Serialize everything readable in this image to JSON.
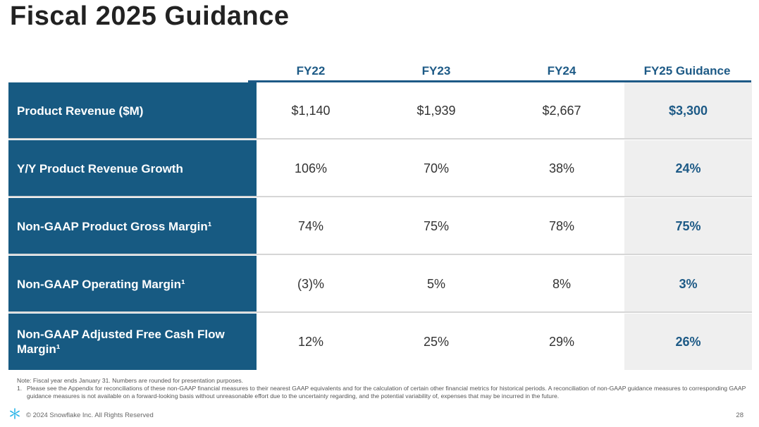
{
  "title": "Fiscal 2025 Guidance",
  "columns": [
    "FY22",
    "FY23",
    "FY24",
    "FY25 Guidance"
  ],
  "rows": [
    {
      "label": "Product Revenue ($M)",
      "values": [
        "$1,140",
        "$1,939",
        "$2,667",
        "$3,300"
      ]
    },
    {
      "label": "Y/Y Product Revenue Growth",
      "values": [
        "106%",
        "70%",
        "38%",
        "24%"
      ]
    },
    {
      "label": "Non-GAAP Product Gross Margin¹",
      "values": [
        "74%",
        "75%",
        "78%",
        "75%"
      ]
    },
    {
      "label": "Non-GAAP Operating Margin¹",
      "values": [
        "(3)%",
        "5%",
        "8%",
        "3%"
      ]
    },
    {
      "label": "Non-GAAP Adjusted Free Cash Flow Margin¹",
      "values": [
        "12%",
        "25%",
        "29%",
        "26%"
      ]
    }
  ],
  "notes": {
    "note": "Note: Fiscal year ends January 31. Numbers are rounded for presentation purposes.",
    "footnote_num": "1.",
    "footnote": "Please see the Appendix for reconciliations of these non-GAAP financial measures to their nearest GAAP equivalents and for the calculation of certain other financial metrics for historical periods. A reconciliation of non-GAAP guidance measures to corresponding GAAP guidance measures is not available on a forward-looking basis without unreasonable effort due to the uncertainty regarding, and the potential variability of, expenses that may be incurred in the future."
  },
  "footer": {
    "logo_icon": "snowflake-icon",
    "copyright": "© 2024 Snowflake Inc. All Rights Reserved",
    "page_number": "28"
  },
  "colors": {
    "accent": "#1d5a86",
    "label_bg": "#175a82",
    "guidance_bg": "#efefef"
  }
}
